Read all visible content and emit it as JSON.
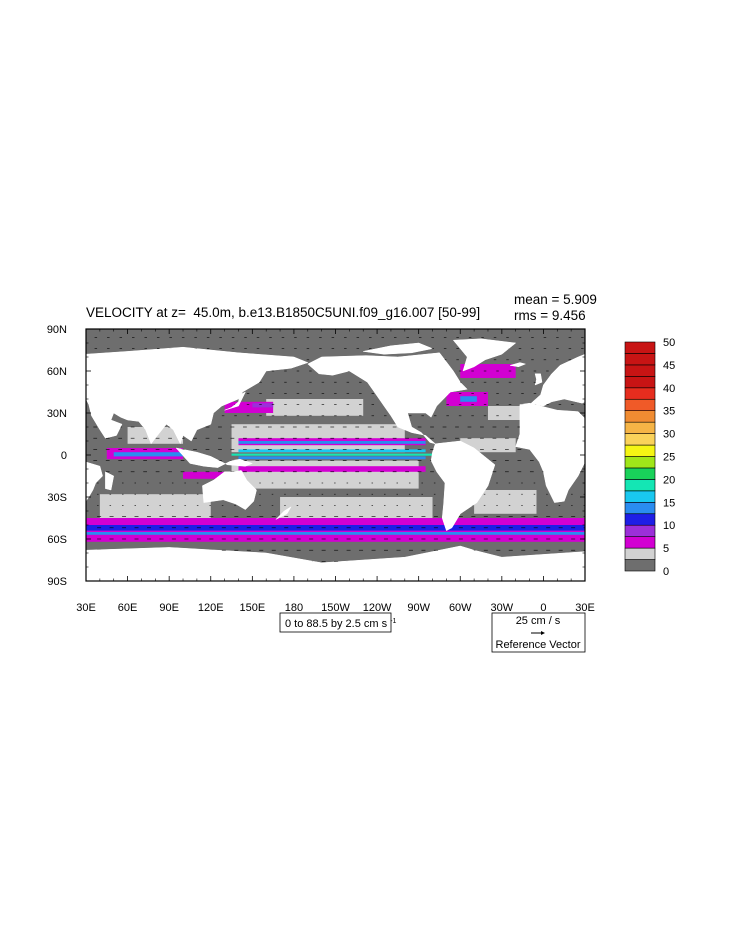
{
  "title": "VELOCITY at z=  45.0m, b.e13.B1850C5UNI.f09_g16.007 [50-99]",
  "stats": {
    "mean": "mean = 5.909",
    "rms": "rms = 9.456"
  },
  "contour_info": "0 to 88.5 by 2.5 cm s",
  "contour_info_exp": "-1",
  "reference_vector": {
    "magnitude": "25 cm / s",
    "label": "Reference Vector"
  },
  "colors": {
    "land": "#ffffff",
    "bins": [
      "#6e6e6e",
      "#d2d2d2",
      "#d200d2",
      "#9c2fd9",
      "#1e1ee6",
      "#2a8cf0",
      "#19c8f0",
      "#14e6b4",
      "#19d25a",
      "#a0e619",
      "#f5f514",
      "#fad25a",
      "#f5b446",
      "#f08c32",
      "#f05a28",
      "#e62d1e",
      "#c81414"
    ]
  },
  "chart_data": {
    "type": "heatmap",
    "variable": "VELOCITY",
    "depth": "45.0m",
    "xlim": [
      30,
      390
    ],
    "ylim": [
      -90,
      90
    ],
    "x_ticks": [
      {
        "lon": 30,
        "label": "30E"
      },
      {
        "lon": 60,
        "label": "60E"
      },
      {
        "lon": 90,
        "label": "90E"
      },
      {
        "lon": 120,
        "label": "120E"
      },
      {
        "lon": 150,
        "label": "150E"
      },
      {
        "lon": 180,
        "label": "180"
      },
      {
        "lon": 210,
        "label": "150W"
      },
      {
        "lon": 240,
        "label": "120W"
      },
      {
        "lon": 270,
        "label": "90W"
      },
      {
        "lon": 300,
        "label": "60W"
      },
      {
        "lon": 330,
        "label": "30W"
      },
      {
        "lon": 360,
        "label": "0"
      },
      {
        "lon": 390,
        "label": "30E"
      }
    ],
    "y_ticks": [
      {
        "lat": 90,
        "label": "90N"
      },
      {
        "lat": 60,
        "label": "60N"
      },
      {
        "lat": 30,
        "label": "30N"
      },
      {
        "lat": 0,
        "label": "0"
      },
      {
        "lat": -30,
        "label": "30S"
      },
      {
        "lat": -60,
        "label": "60S"
      },
      {
        "lat": -90,
        "label": "90S"
      }
    ],
    "colorbar_levels": [
      0,
      2.5,
      5,
      7.5,
      10,
      12.5,
      15,
      17.5,
      20,
      22.5,
      25,
      27.5,
      30,
      32.5,
      35,
      37.5,
      40,
      42.5,
      45,
      47.5,
      50
    ],
    "colorbar_labels": [
      "0",
      "5",
      "10",
      "15",
      "20",
      "25",
      "30",
      "35",
      "40",
      "45",
      "50"
    ],
    "mean": 5.909,
    "rms": 9.456,
    "contour_min": 0,
    "contour_max": 88.5,
    "contour_interval": 2.5,
    "units": "cm s^-1",
    "reference_vector_cm_s": 25
  }
}
